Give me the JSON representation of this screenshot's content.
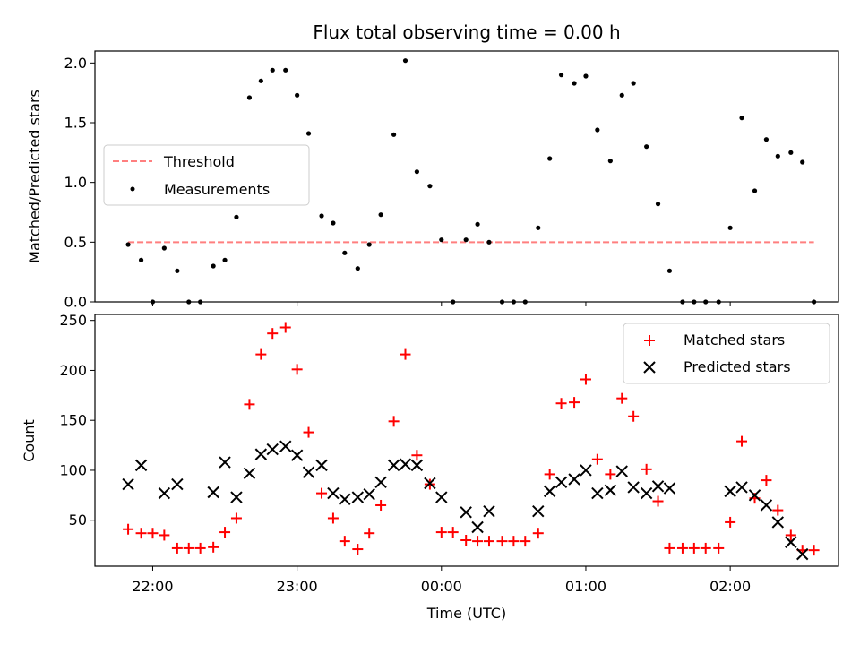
{
  "chart_data": [
    {
      "type": "scatter",
      "title": "Flux total observing time = 0.00 h",
      "ylabel": "Matched/Predicted stars",
      "xlim": [
        21.6,
        26.75
      ],
      "ylim": [
        0,
        2.1
      ],
      "yticks": [
        0.0,
        0.5,
        1.0,
        1.5,
        2.0
      ],
      "ytick_labels": [
        "0.0",
        "0.5",
        "1.0",
        "1.5",
        "2.0"
      ],
      "legend": {
        "placement": "center-left",
        "entries": [
          "Threshold",
          "Measurements"
        ]
      },
      "threshold": {
        "name": "Threshold",
        "value": 0.5,
        "x_start": 21.83,
        "x_end": 26.58,
        "style": "dashed",
        "color": "#ff7f7f"
      },
      "series": [
        {
          "name": "Measurements",
          "marker": "dot",
          "color": "#000000",
          "x": [
            21.83,
            21.92,
            22.0,
            22.08,
            22.17,
            22.25,
            22.33,
            22.42,
            22.5,
            22.58,
            22.67,
            22.75,
            22.83,
            22.92,
            23.0,
            23.08,
            23.17,
            23.25,
            23.33,
            23.42,
            23.5,
            23.58,
            23.67,
            23.75,
            23.83,
            23.92,
            24.0,
            24.08,
            24.17,
            24.25,
            24.33,
            24.42,
            24.5,
            24.58,
            24.67,
            24.75,
            24.83,
            24.92,
            25.0,
            25.08,
            25.17,
            25.25,
            25.33,
            25.42,
            25.5,
            25.58,
            25.67,
            25.75,
            25.83,
            25.92,
            26.0,
            26.08,
            26.17,
            26.25,
            26.33,
            26.42,
            26.5,
            26.58
          ],
          "y": [
            0.48,
            0.35,
            0.0,
            0.45,
            0.26,
            0.0,
            0.0,
            0.3,
            0.35,
            0.71,
            1.71,
            1.85,
            1.94,
            1.94,
            1.73,
            1.41,
            0.72,
            0.66,
            0.41,
            0.28,
            0.48,
            0.73,
            1.4,
            2.02,
            1.09,
            0.97,
            0.52,
            0.0,
            0.52,
            0.65,
            0.5,
            0.0,
            0.0,
            0.0,
            0.62,
            1.2,
            1.9,
            1.83,
            1.89,
            1.44,
            1.18,
            1.73,
            1.83,
            1.3,
            0.82,
            0.26,
            0.0,
            0.0,
            0.0,
            0.0,
            0.62,
            1.54,
            0.93,
            1.36,
            1.22,
            1.25,
            1.17,
            0.0
          ]
        }
      ]
    },
    {
      "type": "scatter",
      "xlabel": "Time (UTC)",
      "ylabel": "Count",
      "xlim": [
        21.6,
        26.75
      ],
      "ylim": [
        4,
        256
      ],
      "xticks": [
        22,
        23,
        24,
        25,
        26
      ],
      "xtick_labels": [
        "22:00",
        "23:00",
        "00:00",
        "01:00",
        "02:00"
      ],
      "yticks": [
        50,
        100,
        150,
        200,
        250
      ],
      "ytick_labels": [
        "50",
        "100",
        "150",
        "200",
        "250"
      ],
      "legend": {
        "placement": "top-right",
        "entries": [
          "Matched stars",
          "Predicted stars"
        ]
      },
      "series": [
        {
          "name": "Matched stars",
          "marker": "plus",
          "color": "#ff0000",
          "x": [
            21.83,
            21.92,
            22.0,
            22.08,
            22.17,
            22.25,
            22.33,
            22.42,
            22.5,
            22.58,
            22.67,
            22.75,
            22.83,
            22.92,
            23.0,
            23.08,
            23.17,
            23.25,
            23.33,
            23.42,
            23.5,
            23.58,
            23.67,
            23.75,
            23.83,
            23.92,
            24.0,
            24.08,
            24.17,
            24.25,
            24.33,
            24.42,
            24.5,
            24.58,
            24.67,
            24.75,
            24.83,
            24.92,
            25.0,
            25.08,
            25.17,
            25.25,
            25.33,
            25.42,
            25.5,
            25.58,
            25.67,
            25.75,
            25.83,
            25.92,
            26.0,
            26.08,
            26.17,
            26.25,
            26.33,
            26.42,
            26.5,
            26.58
          ],
          "y": [
            41,
            37,
            37,
            35,
            22,
            22,
            22,
            23,
            38,
            52,
            166,
            216,
            237,
            243,
            201,
            138,
            77,
            52,
            29,
            21,
            37,
            65,
            149,
            216,
            115,
            86,
            38,
            38,
            30,
            29,
            29,
            29,
            29,
            29,
            37,
            96,
            167,
            168,
            191,
            111,
            96,
            172,
            154,
            101,
            69,
            22,
            22,
            22,
            22,
            22,
            48,
            129,
            72,
            90,
            60,
            35,
            20,
            20
          ]
        },
        {
          "name": "Predicted stars",
          "marker": "x",
          "color": "#000000",
          "x": [
            21.83,
            21.92,
            22.08,
            22.17,
            22.42,
            22.5,
            22.58,
            22.67,
            22.75,
            22.83,
            22.92,
            23.0,
            23.08,
            23.17,
            23.25,
            23.33,
            23.42,
            23.5,
            23.58,
            23.67,
            23.75,
            23.83,
            23.92,
            24.0,
            24.17,
            24.25,
            24.33,
            24.67,
            24.75,
            24.83,
            24.92,
            25.0,
            25.08,
            25.17,
            25.25,
            25.33,
            25.42,
            25.5,
            25.58,
            26.0,
            26.08,
            26.17,
            26.25,
            26.33,
            26.42,
            26.5
          ],
          "y": [
            86,
            105,
            77,
            86,
            78,
            108,
            73,
            97,
            116,
            121,
            124,
            115,
            98,
            105,
            77,
            71,
            73,
            76,
            88,
            105,
            106,
            105,
            87,
            73,
            58,
            43,
            59,
            59,
            79,
            88,
            91,
            100,
            77,
            80,
            99,
            83,
            77,
            84,
            82,
            79,
            83,
            75,
            65,
            48,
            28,
            16
          ]
        }
      ]
    }
  ]
}
